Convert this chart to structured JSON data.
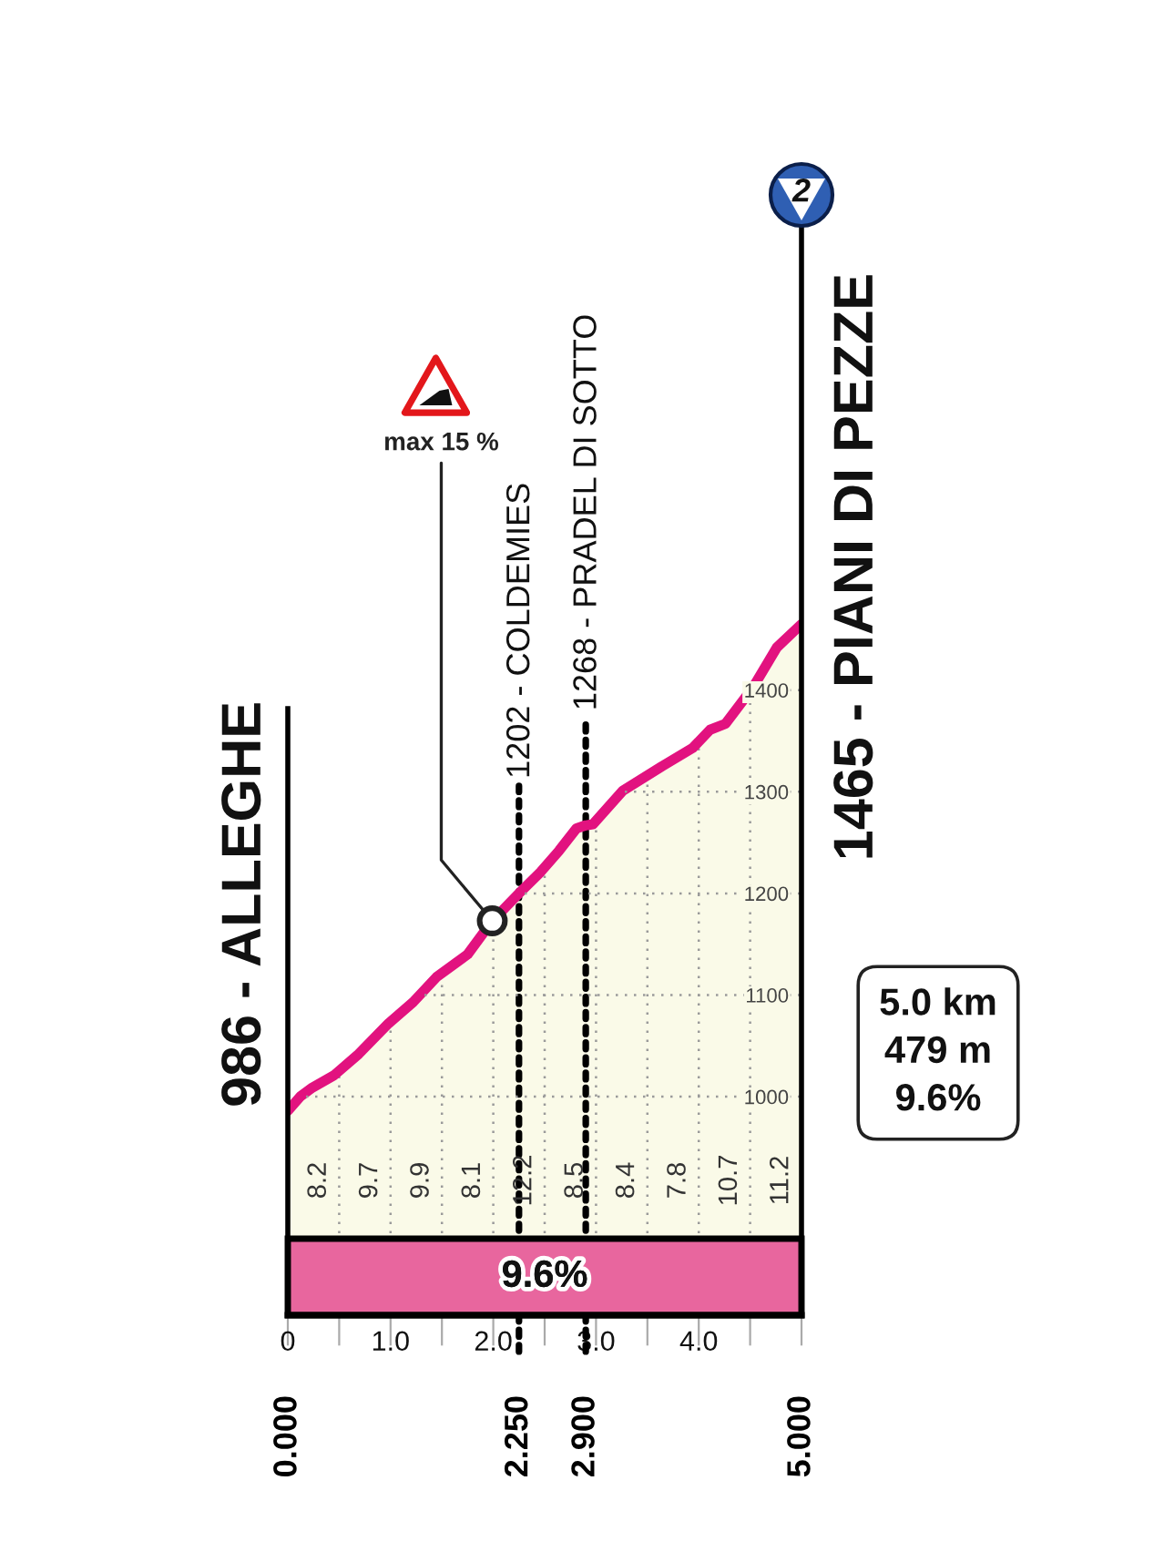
{
  "chart_data": {
    "type": "area",
    "x": [
      0,
      0.12,
      0.24,
      0.45,
      0.69,
      0.98,
      1.22,
      1.45,
      1.75,
      1.99,
      2.25,
      2.46,
      2.64,
      2.81,
      2.9,
      2.97,
      3.26,
      3.64,
      3.94,
      4.11,
      4.26,
      4.53,
      4.76,
      5
    ],
    "series": [
      {
        "color": "#e2127f",
        "values": [
          986,
          1000,
          1009,
          1021,
          1042,
          1072,
          1093,
          1118,
          1140,
          1173,
          1200,
          1221,
          1242,
          1264,
          1267,
          1268,
          1301,
          1325,
          1343,
          1361,
          1367,
          1403,
          1442,
          1465
        ]
      }
    ],
    "xlim": [
      0,
      5
    ],
    "xticks": [
      0,
      {
        "value": 0.5,
        "label": null
      },
      {
        "value": 1,
        "label": "1.0"
      },
      {
        "value": 1.5,
        "label": null
      },
      {
        "value": 2,
        "label": "2.0"
      },
      {
        "value": 2.5,
        "label": null
      },
      {
        "value": 3,
        "label": "3.0"
      },
      {
        "value": 3.5,
        "label": null
      },
      {
        "value": 4,
        "label": "4.0"
      },
      {
        "value": 4.5,
        "label": null
      },
      {
        "value": 5,
        "label": null
      }
    ],
    "x2lim": [
      0,
      5
    ],
    "x2ticks": [
      {
        "value": 0,
        "label": "0.000"
      },
      {
        "value": 2.25,
        "label": "2.250"
      },
      {
        "value": 2.9,
        "label": "2.900"
      },
      {
        "value": 5,
        "label": "5.000"
      }
    ],
    "ylim": [
      785,
      1855
    ],
    "yticks": [
      1000,
      1100,
      1200,
      1300,
      1400
    ],
    "grid": true,
    "ref_lines": [
      {
        "axis": "x",
        "value": 0,
        "label": "986 - ALLEGHE",
        "line_style": "solid"
      },
      {
        "axis": "x",
        "value": 2.25,
        "label": "1202 - COLDEMIES",
        "line_style": "dotted"
      },
      {
        "axis": "x",
        "value": 2.9,
        "label": "1268 - PRADEL DI SOTTO",
        "line_style": "dotted"
      }
    ],
    "bands": [
      {
        "axis": "x",
        "from": 0,
        "to": 5,
        "label": "9.6%",
        "color": "#e8669e"
      }
    ],
    "annotations": [
      {
        "text": "max 15 %",
        "x": 1.99,
        "y": 1173
      },
      "5.0 km\n479 m\n9.6%",
      "2",
      "1465 - PIANI DI PEZZE",
      "8.2",
      "9.7",
      "9.9",
      "8.1",
      "12.2",
      "8.5",
      "8.4",
      "7.8",
      "10.7",
      "11.2"
    ]
  }
}
